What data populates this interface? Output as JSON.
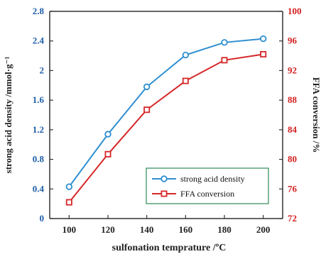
{
  "chart_data": {
    "type": "line",
    "xlabel": "sulfonation temprature /ºC",
    "ylabel_left": "strong acid density /mmol·g⁻¹",
    "ylabel_right": "FFA conversion  /%",
    "x": [
      100,
      120,
      140,
      160,
      180,
      200
    ],
    "xlim": [
      90,
      210
    ],
    "x_ticks": [
      "100",
      "120",
      "140",
      "160",
      "180",
      "200"
    ],
    "ylim_left": [
      0,
      2.8
    ],
    "y_ticks_left": [
      "0",
      "0.4",
      "0.8",
      "1.2",
      "1.6",
      "2",
      "2.4",
      "2.8"
    ],
    "ylim_right": [
      72,
      100
    ],
    "y_ticks_right": [
      "72",
      "76",
      "80",
      "84",
      "88",
      "92",
      "96",
      "100"
    ],
    "series": [
      {
        "name": "strong acid  density",
        "axis": "left",
        "marker": "circle",
        "color": "#2f8fd0",
        "values": [
          0.43,
          1.14,
          1.78,
          2.21,
          2.38,
          2.43
        ]
      },
      {
        "name": "FFA conversion",
        "axis": "right",
        "marker": "square",
        "color": "#d62728",
        "values": [
          74.2,
          80.7,
          86.7,
          90.6,
          93.4,
          94.2
        ]
      }
    ],
    "legend_position": "lower-right",
    "grid": false,
    "colors": {
      "left_axis": "#1f5fa8",
      "right_axis": "#d42020",
      "axis_line": "#333333",
      "legend_border": "#2e8b57"
    }
  }
}
